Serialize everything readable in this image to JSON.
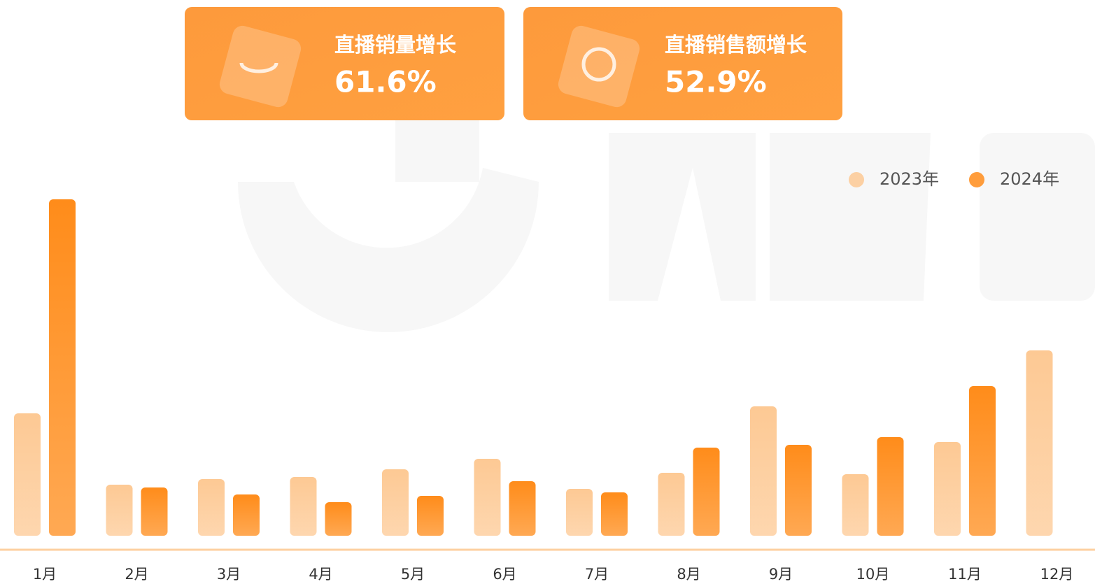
{
  "chart_data": {
    "type": "bar",
    "cards": [
      {
        "title": "直播销量增长",
        "value": "61.6%"
      },
      {
        "title": "直播销售额增长",
        "value": "52.9%"
      }
    ],
    "categories": [
      "1月",
      "2月",
      "3月",
      "4月",
      "5月",
      "6月",
      "7月",
      "8月",
      "9月",
      "10月",
      "11月",
      "12月"
    ],
    "series": [
      {
        "name": "2023年",
        "color": "#fdc994",
        "values": [
          175,
          73,
          81,
          84,
          95,
          110,
          67,
          90,
          185,
          88,
          134,
          265
        ]
      },
      {
        "name": "2024年",
        "color": "#ff8c1a",
        "values": [
          481,
          69,
          59,
          48,
          57,
          78,
          62,
          126,
          130,
          141,
          214,
          null
        ]
      }
    ],
    "ylim": [
      0,
      500
    ],
    "legend": "top-right"
  }
}
